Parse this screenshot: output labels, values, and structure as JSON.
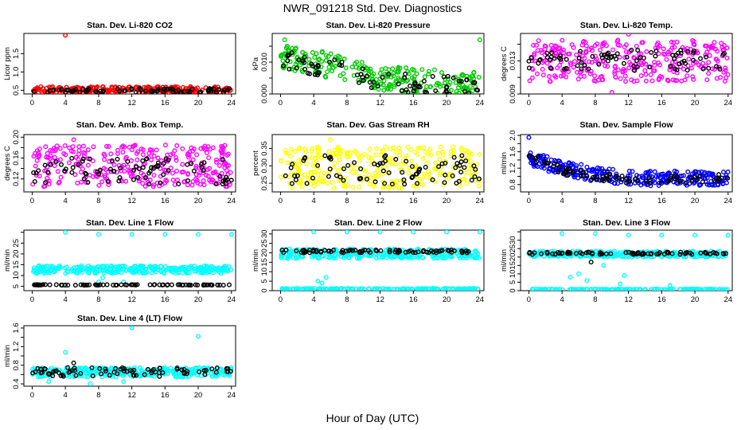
{
  "title": "NWR_091218  Std. Dev. Diagnostics",
  "xlabel": "Hour of Day (UTC)",
  "chart_data": [
    {
      "type": "scatter",
      "title": "Stan. Dev. Li-820 CO2",
      "ylabel": "Licor ppm",
      "xlim": [
        -1,
        24.5
      ],
      "ylim": [
        0.4,
        2.05
      ],
      "xticks": [
        0,
        4,
        8,
        12,
        16,
        20,
        24
      ],
      "yticks": [
        0.5,
        1.0,
        1.5
      ],
      "ytick_labels": [
        "0.5",
        "1.0",
        "1.5"
      ],
      "grid": false,
      "series": [
        {
          "color": "#ff0000",
          "band": [
            0.42,
            0.6
          ],
          "outliers": [
            [
              4,
              2.0
            ]
          ],
          "n": 260
        },
        {
          "color": "#000000",
          "band": [
            0.43,
            0.55
          ],
          "outliers": [],
          "n": 80
        }
      ]
    },
    {
      "type": "scatter",
      "title": "Stan. Dev. Li-820 Pressure",
      "ylabel": "kPa",
      "xlim": [
        -1,
        24.5
      ],
      "ylim": [
        0.0,
        0.019
      ],
      "xticks": [
        0,
        4,
        8,
        12,
        16,
        20,
        24
      ],
      "yticks": [
        0.0,
        0.005,
        0.01,
        0.015
      ],
      "ytick_labels": [
        "0.000",
        "",
        "0.010",
        ""
      ],
      "grid": false,
      "series": [
        {
          "color": "#00cc00",
          "trend": [
            [
              0,
              0.012
            ],
            [
              8,
              0.008
            ],
            [
              12,
              0.005
            ],
            [
              24,
              0.003
            ]
          ],
          "spread": 0.004,
          "outliers": [
            [
              0.5,
              0.017
            ],
            [
              24,
              0.017
            ]
          ],
          "n": 260
        },
        {
          "color": "#000000",
          "trend": [
            [
              0,
              0.011
            ],
            [
              8,
              0.007
            ],
            [
              12,
              0.004
            ],
            [
              24,
              0.002
            ]
          ],
          "spread": 0.003,
          "outliers": [],
          "n": 80
        }
      ]
    },
    {
      "type": "scatter",
      "title": "Stan. Dev. Li-820 Temp.",
      "ylabel": "degrees C",
      "xlim": [
        -1,
        24.5
      ],
      "ylim": [
        0.009,
        0.0163
      ],
      "xticks": [
        0,
        4,
        8,
        12,
        16,
        20,
        24
      ],
      "yticks": [
        0.009,
        0.011,
        0.013,
        0.015
      ],
      "ytick_labels": [
        "0.009",
        "",
        "0.013",
        ""
      ],
      "grid": false,
      "series": [
        {
          "color": "#ff00ff",
          "band": [
            0.0105,
            0.0155
          ],
          "outliers": [
            [
              10,
              0.0092
            ],
            [
              12,
              0.0162
            ]
          ],
          "n": 300
        },
        {
          "color": "#000000",
          "band": [
            0.0118,
            0.0143
          ],
          "outliers": [],
          "n": 80
        }
      ]
    },
    {
      "type": "scatter",
      "title": "Stan. Dev. Amb. Box Temp.",
      "ylabel": "degrees C",
      "xlim": [
        -1,
        24.5
      ],
      "ylim": [
        0.095,
        0.205
      ],
      "xticks": [
        0,
        4,
        8,
        12,
        16,
        20,
        24
      ],
      "yticks": [
        0.12,
        0.14,
        0.16,
        0.18,
        0.2
      ],
      "ytick_labels": [
        "0.12",
        "",
        "0.16",
        "",
        "0.20"
      ],
      "grid": false,
      "series": [
        {
          "color": "#ff00ff",
          "band": [
            0.105,
            0.185
          ],
          "outliers": [
            [
              5,
              0.195
            ]
          ],
          "n": 300
        },
        {
          "color": "#000000",
          "band": [
            0.11,
            0.16
          ],
          "outliers": [],
          "n": 80
        }
      ]
    },
    {
      "type": "scatter",
      "title": "Stan. Dev. Gas Stream RH",
      "ylabel": "percent",
      "xlim": [
        -1,
        24.5
      ],
      "ylim": [
        0.225,
        0.39
      ],
      "xticks": [
        0,
        4,
        8,
        12,
        16,
        20,
        24
      ],
      "yticks": [
        0.25,
        0.3,
        0.35
      ],
      "ytick_labels": [
        "0.25",
        "0.30",
        "0.35"
      ],
      "grid": false,
      "series": [
        {
          "color": "#ffff00",
          "band": [
            0.235,
            0.355
          ],
          "outliers": [
            [
              6,
              0.375
            ]
          ],
          "n": 300
        },
        {
          "color": "#000000",
          "band": [
            0.245,
            0.33
          ],
          "outliers": [],
          "n": 80
        }
      ]
    },
    {
      "type": "scatter",
      "title": "Stan. Dev. Sample Flow",
      "ylabel": "ml/min",
      "xlim": [
        -1,
        24.5
      ],
      "ylim": [
        0.62,
        2.02
      ],
      "xticks": [
        0,
        4,
        8,
        12,
        16,
        20,
        24
      ],
      "yticks": [
        0.8,
        1.0,
        1.2,
        1.4,
        1.6,
        1.8,
        2.0
      ],
      "ytick_labels": [
        "0.8",
        "",
        "1.2",
        "",
        "1.6",
        "",
        "2.0"
      ],
      "grid": false,
      "series": [
        {
          "color": "#0000ff",
          "trend": [
            [
              0,
              1.45
            ],
            [
              4,
              1.2
            ],
            [
              8,
              1.05
            ],
            [
              12,
              0.95
            ],
            [
              24,
              0.95
            ]
          ],
          "spread": 0.18,
          "outliers": [
            [
              0,
              1.95
            ]
          ],
          "n": 300
        },
        {
          "color": "#000000",
          "trend": [
            [
              0,
              1.5
            ],
            [
              4,
              1.15
            ],
            [
              8,
              1.0
            ],
            [
              12,
              0.92
            ],
            [
              24,
              0.95
            ]
          ],
          "spread": 0.1,
          "outliers": [],
          "n": 80
        }
      ]
    },
    {
      "type": "scatter",
      "title": "Stan. Dev. Line 1 Flow",
      "ylabel": "ml/min",
      "xlim": [
        -1,
        24.5
      ],
      "ylim": [
        3,
        31
      ],
      "xticks": [
        0,
        4,
        8,
        12,
        16,
        20,
        24
      ],
      "yticks": [
        5,
        10,
        15,
        20,
        25,
        30
      ],
      "ytick_labels": [
        "5",
        "10",
        "15",
        "20",
        "25",
        ""
      ],
      "grid": false,
      "series": [
        {
          "color": "#00ffff",
          "band": [
            11,
            14.5
          ],
          "outliers": [
            [
              4,
              30
            ],
            [
              8,
              29
            ],
            [
              12,
              29
            ],
            [
              16,
              29
            ],
            [
              20,
              29
            ],
            [
              24,
              29
            ],
            [
              8,
              7
            ],
            [
              8.5,
              9
            ],
            [
              11,
              7
            ]
          ],
          "n": 300
        },
        {
          "color": "#000000",
          "band": [
            5.5,
            5.8
          ],
          "outliers": [],
          "n": 80
        }
      ]
    },
    {
      "type": "scatter",
      "title": "Stan. Dev. Line 2 Flow",
      "ylabel": "ml/min",
      "xlim": [
        -1,
        24.5
      ],
      "ylim": [
        0,
        32
      ],
      "xticks": [
        0,
        4,
        8,
        12,
        16,
        20,
        24
      ],
      "yticks": [
        0,
        5,
        10,
        15,
        20,
        25,
        30
      ],
      "ytick_labels": [
        "0",
        "5",
        "10",
        "15",
        "20",
        "25",
        "30"
      ],
      "grid": false,
      "series": [
        {
          "color": "#00ffff",
          "band": [
            17,
            22
          ],
          "outliers": [
            [
              4,
              31
            ],
            [
              8,
              31
            ],
            [
              12,
              31
            ],
            [
              16,
              31
            ],
            [
              20,
              31
            ],
            [
              24,
              31
            ],
            [
              4.5,
              5
            ],
            [
              5,
              4
            ],
            [
              5.5,
              7
            ]
          ],
          "n": 300
        },
        {
          "color": "#00ffff",
          "band": [
            0.6,
            1.2
          ],
          "outliers": [],
          "n": 150
        },
        {
          "color": "#000000",
          "band": [
            20,
            21.5
          ],
          "outliers": [],
          "n": 80
        }
      ]
    },
    {
      "type": "scatter",
      "title": "Stan. Dev. Line 3 Flow",
      "ylabel": "ml/min",
      "xlim": [
        -1,
        24.5
      ],
      "ylim": [
        0,
        36
      ],
      "xticks": [
        0,
        4,
        8,
        12,
        16,
        20,
        24
      ],
      "yticks": [
        0,
        5,
        10,
        15,
        20,
        25,
        30,
        35
      ],
      "ytick_labels": [
        "0",
        "5",
        "10",
        "15",
        "20",
        "25",
        "30",
        ""
      ],
      "grid": false,
      "series": [
        {
          "color": "#00ffff",
          "band": [
            20,
            23.5
          ],
          "outliers": [
            [
              4,
              34
            ],
            [
              8,
              34
            ],
            [
              12,
              33
            ],
            [
              16,
              33
            ],
            [
              20,
              33
            ],
            [
              24,
              33
            ],
            [
              5,
              8
            ],
            [
              6,
              10
            ],
            [
              7,
              6
            ],
            [
              9,
              15
            ],
            [
              11,
              4
            ],
            [
              11.5,
              9
            ],
            [
              17,
              3
            ]
          ],
          "n": 300
        },
        {
          "color": "#00ffff",
          "band": [
            0.5,
            1.0
          ],
          "outliers": [],
          "n": 150
        },
        {
          "color": "#000000",
          "band": [
            21.5,
            23
          ],
          "outliers": [
            [
              7.5,
              17
            ]
          ],
          "n": 80
        }
      ]
    },
    {
      "type": "scatter",
      "title": "Stan. Dev. Line 4 (LT) Flow",
      "ylabel": "ml/min",
      "xlim": [
        -1,
        24.5
      ],
      "ylim": [
        0.35,
        1.65
      ],
      "xticks": [
        0,
        4,
        8,
        12,
        16,
        20,
        24
      ],
      "yticks": [
        0.4,
        0.6,
        0.8,
        1.0,
        1.2,
        1.4,
        1.6
      ],
      "ytick_labels": [
        "0.4",
        "",
        "0.8",
        "",
        "1.2",
        "",
        "1.6"
      ],
      "grid": false,
      "series": [
        {
          "color": "#00ffff",
          "band": [
            0.55,
            0.75
          ],
          "outliers": [
            [
              4,
              1.08
            ],
            [
              12,
              1.6
            ],
            [
              20,
              1.42
            ],
            [
              2,
              0.45
            ],
            [
              7,
              0.4
            ],
            [
              11,
              0.45
            ]
          ],
          "n": 300
        },
        {
          "color": "#000000",
          "band": [
            0.55,
            0.75
          ],
          "outliers": [
            [
              5,
              0.85
            ]
          ],
          "n": 80
        }
      ]
    }
  ]
}
